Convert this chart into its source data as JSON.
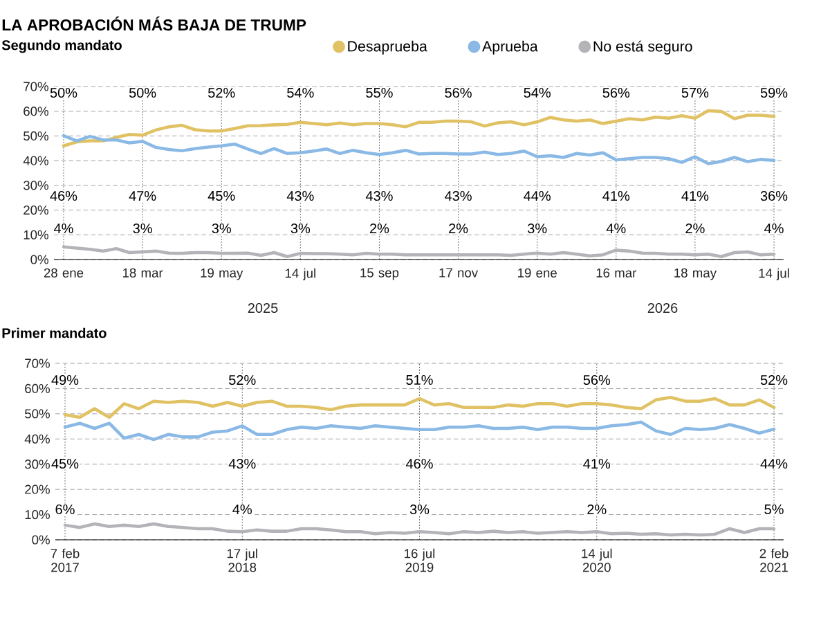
{
  "chart_data": [
    {
      "type": "line",
      "title": "LA APROBACIÓN MÁS BAJA DE TRUMP",
      "subtitle": "Segundo mandato",
      "categories": [
        "28 ene",
        null,
        null,
        null,
        null,
        null,
        "18 mar",
        null,
        null,
        null,
        null,
        null,
        "19 may",
        null,
        null,
        null,
        null,
        null,
        "14 jul",
        null,
        null,
        null,
        null,
        null,
        "15 sep",
        null,
        null,
        null,
        null,
        null,
        "17 nov",
        null,
        null,
        null,
        null,
        null,
        "19 ene",
        null,
        null,
        null,
        null,
        null,
        "16 mar",
        null,
        null,
        null,
        null,
        null,
        "18 may",
        null,
        null,
        null,
        null,
        null,
        "14 jul"
      ],
      "series": [
        {
          "name": "Desaprueba",
          "color": "#e0c264",
          "values": [
            46,
            47.6,
            48,
            48,
            49.4,
            50.6,
            50.3,
            52.4,
            53.7,
            54.3,
            52.5,
            52,
            52,
            53,
            54.1,
            54.2,
            54.5,
            54.7,
            55.5,
            55,
            54.5,
            55.2,
            54.5,
            55,
            55,
            54.5,
            53.7,
            55.5,
            55.5,
            56,
            56,
            55.7,
            54,
            55.3,
            55.7,
            54.5,
            55.7,
            57.5,
            56.5,
            56,
            56.5,
            55,
            56,
            57,
            56.5,
            57.6,
            57.2,
            58.2,
            57.2,
            60.2,
            59.9,
            57,
            58.4,
            58.4,
            57.9
          ]
        },
        {
          "name": "Aprueba",
          "color": "#8ab9e6",
          "values": [
            50.1,
            48,
            49.8,
            48.4,
            48.4,
            47.2,
            47.8,
            45.4,
            44.5,
            44,
            44.9,
            45.5,
            46,
            46.7,
            44.7,
            42.9,
            44.9,
            42.9,
            43.2,
            43.9,
            44.7,
            42.9,
            44.2,
            43.2,
            42.5,
            43.2,
            44.2,
            42.7,
            42.9,
            42.9,
            42.7,
            42.7,
            43.5,
            42.5,
            42.9,
            43.9,
            41.6,
            42,
            41.3,
            42.9,
            42.3,
            43.2,
            40.3,
            40.8,
            41.3,
            41.3,
            40.8,
            39.3,
            41.6,
            38.8,
            39.7,
            41.3,
            39.6,
            40.5,
            40.1
          ]
        },
        {
          "name": "No está seguro",
          "color": "#b4b4b8",
          "values": [
            5.1,
            4.6,
            4.1,
            3.4,
            4.4,
            2.8,
            3.1,
            3.4,
            2.6,
            2.5,
            2.8,
            2.8,
            2.5,
            2.5,
            2.6,
            1.7,
            2.8,
            1.2,
            2.5,
            2.4,
            2.4,
            2.2,
            1.9,
            2.5,
            2.2,
            2.2,
            1.9,
            1.9,
            1.9,
            1.9,
            1.9,
            1.9,
            1.9,
            1.9,
            1.7,
            2.2,
            2.6,
            2.2,
            2.8,
            2.2,
            1.5,
            1.9,
            3.8,
            3.4,
            2.6,
            2.5,
            2.2,
            2.2,
            1.9,
            2.2,
            1.2,
            2.8,
            3.1,
            1.9,
            2.2
          ]
        }
      ],
      "ylim": [
        0,
        70
      ],
      "yticks": [
        {
          "value": 0,
          "label": "0%"
        },
        {
          "value": 10,
          "label": "10%"
        },
        {
          "value": 20,
          "label": "20%"
        },
        {
          "value": 30,
          "label": "30%"
        },
        {
          "value": 40,
          "label": "40%"
        },
        {
          "value": 50,
          "label": "50%"
        },
        {
          "value": 60,
          "label": "60%"
        },
        {
          "value": 70,
          "label": "70%"
        }
      ],
      "grid": true,
      "legend": "top",
      "annotations": [
        "50%",
        "50%",
        "52%",
        "54%",
        "55%",
        "56%",
        "54%",
        "56%",
        "57%",
        "59%",
        "46%",
        "47%",
        "45%",
        "43%",
        "43%",
        "43%",
        "44%",
        "41%",
        "41%",
        "36%",
        "4%",
        "3%",
        "3%",
        "3%",
        "2%",
        "2%",
        "3%",
        "4%",
        "2%",
        "4%",
        "2025",
        "2026"
      ]
    },
    {
      "type": "line",
      "title": "Primer mandato",
      "categories": [
        "7 feb 2017",
        null,
        null,
        null,
        null,
        null,
        null,
        null,
        null,
        null,
        null,
        null,
        "17 jul 2018",
        null,
        null,
        null,
        null,
        null,
        null,
        null,
        null,
        null,
        null,
        null,
        "16 jul 2019",
        null,
        null,
        null,
        null,
        null,
        null,
        null,
        null,
        null,
        null,
        null,
        "14 jul 2020",
        null,
        null,
        null,
        null,
        null,
        null,
        null,
        null,
        null,
        null,
        null,
        "2 feb 2021"
      ],
      "series": [
        {
          "color": "#e0c264",
          "values": [
            49.6,
            48.6,
            52,
            48.6,
            54,
            52,
            55,
            54.5,
            55,
            54.5,
            53,
            54.5,
            53,
            54.5,
            55,
            53,
            53,
            52.5,
            51.6,
            53,
            53.5,
            53.5,
            53.5,
            53.5,
            56,
            53.5,
            54,
            52.5,
            52.5,
            52.5,
            53.5,
            53,
            54,
            54,
            53,
            54,
            54,
            53.5,
            52.5,
            52,
            55.5,
            56.5,
            55,
            55,
            56,
            53.5,
            53.5,
            55.5,
            52.5
          ]
        },
        {
          "color": "#8ab9e6",
          "values": [
            44.7,
            46.2,
            44.2,
            46.2,
            40.3,
            41.8,
            39.8,
            41.8,
            40.8,
            40.8,
            42.7,
            43.2,
            45.2,
            41.8,
            41.8,
            43.7,
            44.7,
            44.2,
            45.2,
            44.7,
            44.2,
            45.2,
            44.7,
            44.2,
            43.7,
            43.7,
            44.7,
            44.7,
            45.2,
            44.2,
            44.2,
            44.7,
            43.7,
            44.7,
            44.7,
            44.2,
            44.2,
            45.2,
            45.7,
            46.7,
            43.2,
            41.8,
            44.2,
            43.7,
            44.2,
            45.7,
            44.2,
            42.3,
            43.9
          ]
        },
        {
          "color": "#b4b4b8",
          "values": [
            5.8,
            4.9,
            6.3,
            5.3,
            5.8,
            5.3,
            6.3,
            5.3,
            4.9,
            4.4,
            4.4,
            3.4,
            3.2,
            3.9,
            3.4,
            3.4,
            4.4,
            4.4,
            3.9,
            3.2,
            3.2,
            2.4,
            2.9,
            2.6,
            3.2,
            2.9,
            2.4,
            3.2,
            2.9,
            3.4,
            2.9,
            3.2,
            2.6,
            2.9,
            3.2,
            2.9,
            3.2,
            2.4,
            2.6,
            2.2,
            2.4,
            1.9,
            2.2,
            1.9,
            2.2,
            4.4,
            2.9,
            4.4,
            4.4
          ]
        }
      ],
      "ylim": [
        0,
        70
      ],
      "yticks": [
        {
          "value": 0,
          "label": "0%"
        },
        {
          "value": 10,
          "label": "10%"
        },
        {
          "value": 20,
          "label": "20%"
        },
        {
          "value": 30,
          "label": "30%"
        },
        {
          "value": 40,
          "label": "40%"
        },
        {
          "value": 50,
          "label": "50%"
        },
        {
          "value": 60,
          "label": "60%"
        },
        {
          "value": 70,
          "label": "70%"
        }
      ],
      "grid": true,
      "annotations": [
        "49%",
        "52%",
        "51%",
        "56%",
        "52%",
        "45%",
        "43%",
        "46%",
        "41%",
        "44%",
        "6%",
        "4%",
        "3%",
        "2%",
        "5%"
      ]
    }
  ]
}
